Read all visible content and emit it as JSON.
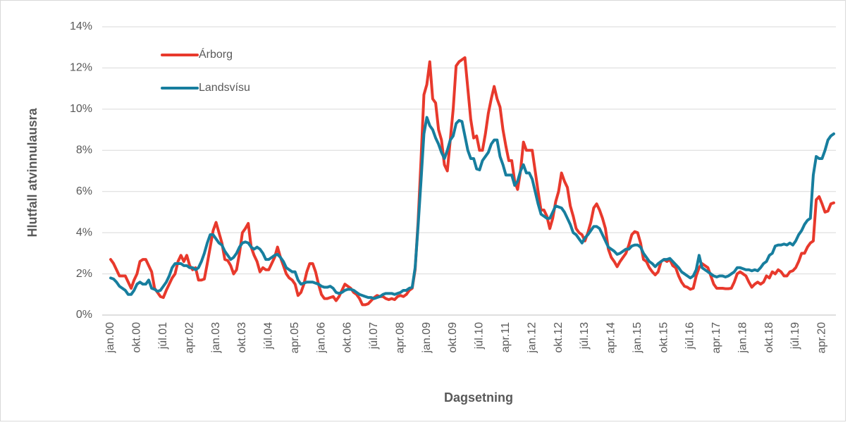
{
  "chart_data": {
    "type": "line",
    "xlabel": "Dagsetning",
    "ylabel": "Hlutfall atvinnulausra",
    "legend": "top-left",
    "grid": true,
    "ylim": [
      0,
      14
    ],
    "yticks": [
      {
        "value": 0,
        "label": "0%"
      },
      {
        "value": 2,
        "label": "2%"
      },
      {
        "value": 4,
        "label": "4%"
      },
      {
        "value": 6,
        "label": "6%"
      },
      {
        "value": 8,
        "label": "8%"
      },
      {
        "value": 10,
        "label": "10%"
      },
      {
        "value": 12,
        "label": "12%"
      },
      {
        "value": 14,
        "label": "14%"
      }
    ],
    "categories": [
      "jan.00",
      null,
      null,
      null,
      null,
      null,
      null,
      null,
      null,
      "okt.00",
      null,
      null,
      null,
      null,
      null,
      null,
      null,
      null,
      "júl.01",
      null,
      null,
      null,
      null,
      null,
      null,
      null,
      null,
      "apr.02",
      null,
      null,
      null,
      null,
      null,
      null,
      null,
      null,
      "jan.03",
      null,
      null,
      null,
      null,
      null,
      null,
      null,
      null,
      "okt.03",
      null,
      null,
      null,
      null,
      null,
      null,
      null,
      null,
      "júl.04",
      null,
      null,
      null,
      null,
      null,
      null,
      null,
      null,
      "apr.05",
      null,
      null,
      null,
      null,
      null,
      null,
      null,
      null,
      "jan.06",
      null,
      null,
      null,
      null,
      null,
      null,
      null,
      null,
      "okt.06",
      null,
      null,
      null,
      null,
      null,
      null,
      null,
      null,
      "júl.07",
      null,
      null,
      null,
      null,
      null,
      null,
      null,
      null,
      "apr.08",
      null,
      null,
      null,
      null,
      null,
      null,
      null,
      null,
      "jan.09",
      null,
      null,
      null,
      null,
      null,
      null,
      null,
      null,
      "okt.09",
      null,
      null,
      null,
      null,
      null,
      null,
      null,
      null,
      "júl.10",
      null,
      null,
      null,
      null,
      null,
      null,
      null,
      null,
      "apr.11",
      null,
      null,
      null,
      null,
      null,
      null,
      null,
      null,
      "jan.12",
      null,
      null,
      null,
      null,
      null,
      null,
      null,
      null,
      "okt.12",
      null,
      null,
      null,
      null,
      null,
      null,
      null,
      null,
      "júl.13",
      null,
      null,
      null,
      null,
      null,
      null,
      null,
      null,
      "apr.14",
      null,
      null,
      null,
      null,
      null,
      null,
      null,
      null,
      "jan.15",
      null,
      null,
      null,
      null,
      null,
      null,
      null,
      null,
      "okt.15",
      null,
      null,
      null,
      null,
      null,
      null,
      null,
      null,
      "júl.16",
      null,
      null,
      null,
      null,
      null,
      null,
      null,
      null,
      "apr.17",
      null,
      null,
      null,
      null,
      null,
      null,
      null,
      null,
      "jan.18",
      null,
      null,
      null,
      null,
      null,
      null,
      null,
      null,
      "okt.18",
      null,
      null,
      null,
      null,
      null,
      null,
      null,
      null,
      "júl.19",
      null,
      null,
      null,
      null,
      null,
      null,
      null,
      null,
      "apr.20",
      null,
      null,
      null,
      null
    ],
    "series": [
      {
        "name": "Árborg",
        "color": "#e8392c",
        "values": [
          2.7,
          2.5,
          2.2,
          1.9,
          1.9,
          1.9,
          1.6,
          1.3,
          1.7,
          2.0,
          2.6,
          2.7,
          2.7,
          2.4,
          2.1,
          1.3,
          1.1,
          0.9,
          0.85,
          1.2,
          1.5,
          1.8,
          2.0,
          2.6,
          2.9,
          2.6,
          2.9,
          2.4,
          2.2,
          2.3,
          1.7,
          1.7,
          1.75,
          2.5,
          3.3,
          4.1,
          4.5,
          4.0,
          3.5,
          2.7,
          2.65,
          2.4,
          2.0,
          2.2,
          3.0,
          4.0,
          4.2,
          4.45,
          3.3,
          2.9,
          2.6,
          2.1,
          2.3,
          2.2,
          2.2,
          2.5,
          2.8,
          3.3,
          2.8,
          2.4,
          2.0,
          1.8,
          1.7,
          1.5,
          0.95,
          1.1,
          1.5,
          2.1,
          2.5,
          2.5,
          2.1,
          1.5,
          1.0,
          0.8,
          0.8,
          0.85,
          0.9,
          0.7,
          0.9,
          1.2,
          1.5,
          1.4,
          1.3,
          1.1,
          1.0,
          0.8,
          0.5,
          0.5,
          0.55,
          0.7,
          0.85,
          0.95,
          0.9,
          0.9,
          0.8,
          0.75,
          0.8,
          0.75,
          0.9,
          0.95,
          0.9,
          1.0,
          1.2,
          1.3,
          2.2,
          4.5,
          7.5,
          10.7,
          11.2,
          12.3,
          10.5,
          10.3,
          9.0,
          8.5,
          7.3,
          7.0,
          8.5,
          10.0,
          12.1,
          12.3,
          12.4,
          12.5,
          11.0,
          9.5,
          8.6,
          8.7,
          8.0,
          8.0,
          8.8,
          9.8,
          10.5,
          11.1,
          10.5,
          10.1,
          9.0,
          8.2,
          7.5,
          7.5,
          6.5,
          6.1,
          7.0,
          8.4,
          8.0,
          8.0,
          8.0,
          7.0,
          6.0,
          5.1,
          5.1,
          4.8,
          4.2,
          4.7,
          5.5,
          6.0,
          6.9,
          6.5,
          6.2,
          5.3,
          4.8,
          4.2,
          4.0,
          3.9,
          3.6,
          4.0,
          4.5,
          5.2,
          5.4,
          5.1,
          4.7,
          4.2,
          3.2,
          2.8,
          2.6,
          2.35,
          2.6,
          2.8,
          3.0,
          3.4,
          3.9,
          4.05,
          4.0,
          3.5,
          2.7,
          2.6,
          2.3,
          2.1,
          1.95,
          2.1,
          2.6,
          2.7,
          2.6,
          2.7,
          2.4,
          2.3,
          1.9,
          1.6,
          1.4,
          1.35,
          1.25,
          1.3,
          1.9,
          2.3,
          2.5,
          2.4,
          2.3,
          1.9,
          1.5,
          1.3,
          1.3,
          1.3,
          1.28,
          1.28,
          1.3,
          1.6,
          2.0,
          2.1,
          2.0,
          1.9,
          1.6,
          1.35,
          1.5,
          1.6,
          1.5,
          1.6,
          1.9,
          1.8,
          2.1,
          2.0,
          2.2,
          2.1,
          1.9,
          1.9,
          2.1,
          2.15,
          2.3,
          2.6,
          3.0,
          3.0,
          3.3,
          3.5,
          3.6,
          5.6,
          5.75,
          5.4,
          5.0,
          5.05,
          5.4,
          5.45
        ]
      },
      {
        "name": "Landsvísu",
        "color": "#177e9e",
        "values": [
          1.8,
          1.75,
          1.6,
          1.4,
          1.3,
          1.2,
          1.0,
          1.0,
          1.2,
          1.5,
          1.6,
          1.5,
          1.5,
          1.7,
          1.3,
          1.25,
          1.15,
          1.2,
          1.4,
          1.6,
          1.9,
          2.3,
          2.5,
          2.5,
          2.5,
          2.4,
          2.4,
          2.3,
          2.3,
          2.2,
          2.3,
          2.6,
          3.0,
          3.5,
          3.9,
          3.9,
          3.7,
          3.5,
          3.4,
          3.1,
          2.9,
          2.7,
          2.8,
          3.0,
          3.3,
          3.5,
          3.55,
          3.5,
          3.3,
          3.2,
          3.3,
          3.2,
          3.0,
          2.7,
          2.7,
          2.8,
          2.9,
          2.95,
          2.8,
          2.6,
          2.3,
          2.2,
          2.1,
          2.1,
          1.7,
          1.5,
          1.55,
          1.6,
          1.6,
          1.6,
          1.55,
          1.5,
          1.4,
          1.35,
          1.35,
          1.4,
          1.3,
          1.1,
          1.05,
          1.1,
          1.2,
          1.25,
          1.25,
          1.2,
          1.1,
          1.0,
          0.95,
          0.9,
          0.85,
          0.85,
          0.8,
          0.85,
          0.9,
          1.0,
          1.05,
          1.05,
          1.05,
          1.0,
          1.05,
          1.1,
          1.2,
          1.2,
          1.3,
          1.35,
          2.3,
          4.3,
          6.5,
          8.8,
          9.6,
          9.2,
          9.0,
          8.6,
          8.3,
          7.9,
          7.6,
          8.0,
          8.5,
          8.7,
          9.3,
          9.45,
          9.4,
          8.7,
          8.0,
          7.6,
          7.6,
          7.1,
          7.05,
          7.5,
          7.7,
          7.9,
          8.3,
          8.5,
          8.5,
          7.7,
          7.3,
          6.8,
          6.8,
          6.8,
          6.3,
          6.5,
          7.0,
          7.3,
          6.9,
          6.9,
          6.6,
          6.0,
          5.4,
          4.9,
          4.8,
          4.7,
          4.7,
          5.0,
          5.3,
          5.25,
          5.2,
          5.0,
          4.7,
          4.4,
          4.0,
          3.9,
          3.7,
          3.5,
          3.75,
          3.9,
          4.1,
          4.3,
          4.3,
          4.2,
          3.9,
          3.6,
          3.3,
          3.2,
          3.1,
          2.95,
          3.0,
          3.1,
          3.2,
          3.2,
          3.35,
          3.4,
          3.4,
          3.3,
          3.0,
          2.8,
          2.6,
          2.5,
          2.35,
          2.5,
          2.6,
          2.7,
          2.7,
          2.75,
          2.6,
          2.45,
          2.3,
          2.1,
          2.0,
          1.9,
          1.8,
          1.9,
          2.2,
          2.9,
          2.3,
          2.2,
          2.1,
          2.0,
          1.9,
          1.85,
          1.9,
          1.9,
          1.85,
          1.9,
          2.0,
          2.1,
          2.3,
          2.3,
          2.25,
          2.2,
          2.2,
          2.15,
          2.2,
          2.15,
          2.3,
          2.5,
          2.6,
          2.9,
          3.0,
          3.35,
          3.4,
          3.4,
          3.45,
          3.4,
          3.5,
          3.4,
          3.6,
          3.9,
          4.1,
          4.4,
          4.6,
          4.7,
          6.8,
          7.7,
          7.6,
          7.6,
          8.0,
          8.5,
          8.7,
          8.8
        ]
      }
    ]
  }
}
